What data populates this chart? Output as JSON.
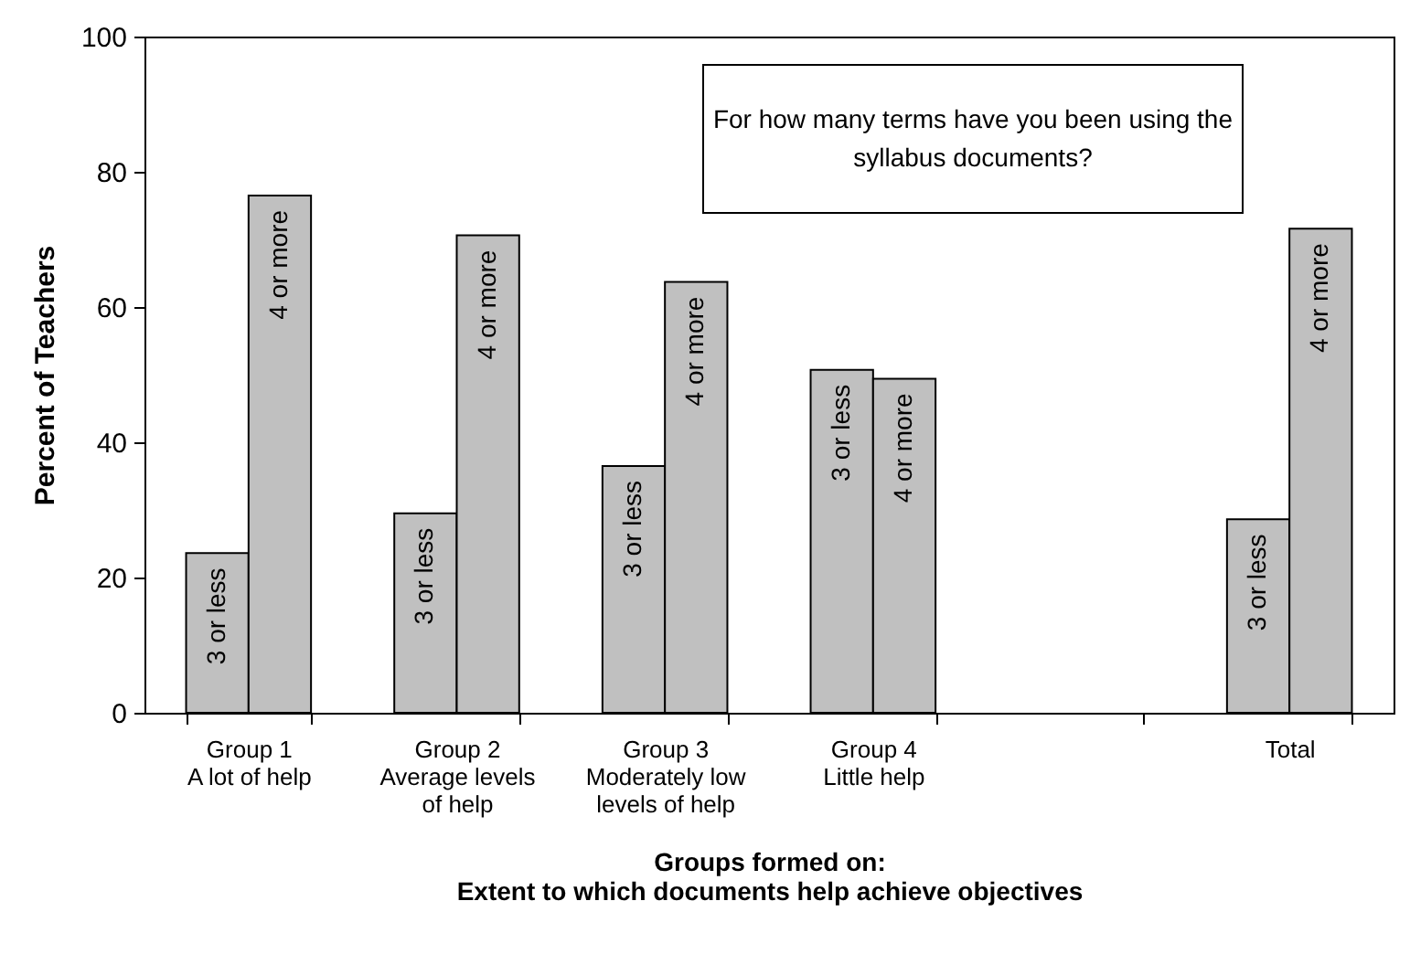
{
  "chart_data": {
    "type": "bar",
    "xlabel": "Groups formed on:\nExtent to which documents help achieve objectives",
    "ylabel": "Percent of Teachers",
    "categories": [
      "Group 1\nA lot of help",
      "Group 2\nAverage levels\nof help",
      "Group 3\nModerately low\nlevels of help",
      "Group 4\nLittle help",
      null,
      "Total"
    ],
    "series": [
      {
        "name": "3 or less",
        "color": "#c0c0c0",
        "values": [
          23.6,
          29.5,
          36.5,
          50.7,
          null,
          28.6
        ]
      },
      {
        "name": "4 or more",
        "color": "#c0c0c0",
        "values": [
          76.5,
          70.6,
          63.7,
          49.4,
          null,
          71.6
        ]
      }
    ],
    "ylim": [
      0,
      100
    ],
    "yticks": [
      0,
      20,
      40,
      60,
      80,
      100
    ],
    "grid": false,
    "annotations": [
      "For how many terms have you been using the syllabus documents?"
    ]
  }
}
